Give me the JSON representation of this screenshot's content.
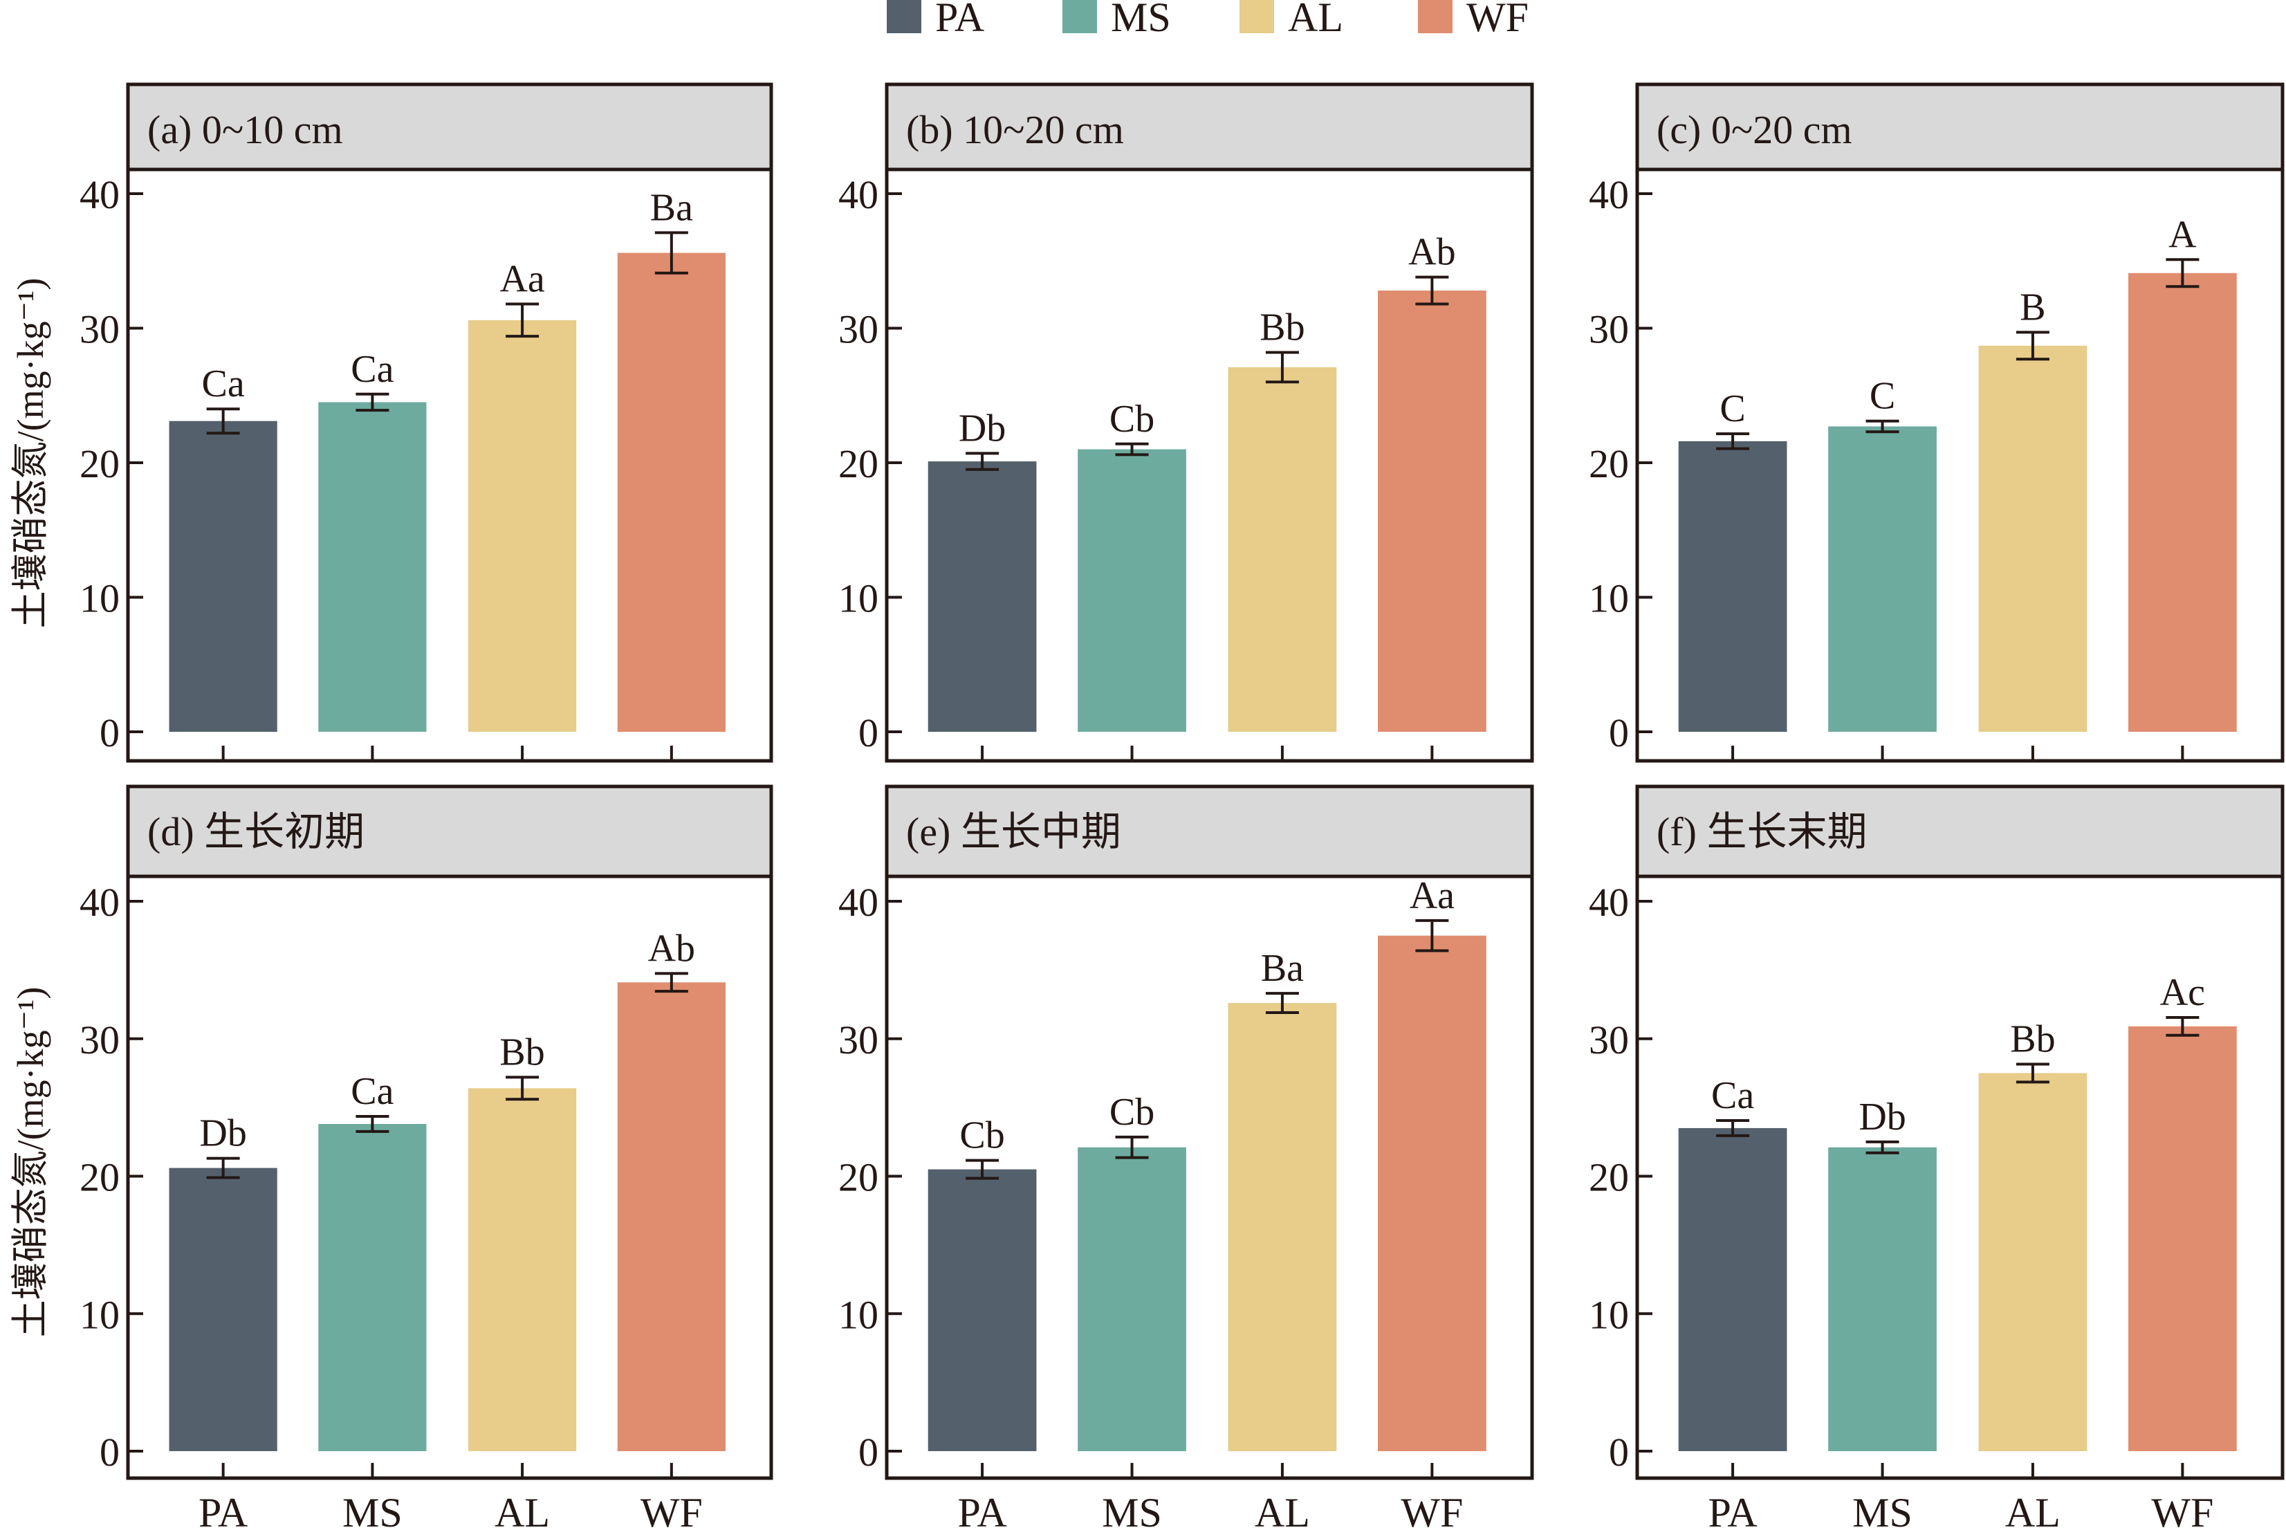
{
  "chart_data": {
    "type": "bar",
    "ylabel": "土壤硝态氮/(mg·kg⁻¹)",
    "categories": [
      "PA",
      "MS",
      "AL",
      "WF"
    ],
    "ylim": [
      0,
      40
    ],
    "yticks": [
      0,
      10,
      20,
      30,
      40
    ],
    "grid": false,
    "legend": {
      "placement": "top-center",
      "entries": [
        {
          "label": "PA",
          "color": "#54616D"
        },
        {
          "label": "MS",
          "color": "#6DAB9F"
        },
        {
          "label": "AL",
          "color": "#E7CC8A"
        },
        {
          "label": "WF",
          "color": "#E08D6F"
        }
      ]
    },
    "panels": [
      {
        "title": "(a) 0~10 cm",
        "values": [
          23.1,
          24.5,
          30.6,
          35.6
        ],
        "errors": [
          0.9,
          0.6,
          1.2,
          1.5
        ],
        "labels": [
          "Ca",
          "Ca",
          "Aa",
          "Ba"
        ]
      },
      {
        "title": "(b) 10~20 cm",
        "values": [
          20.1,
          21.0,
          27.1,
          32.8
        ],
        "errors": [
          0.6,
          0.4,
          1.1,
          1.0
        ],
        "labels": [
          "Db",
          "Cb",
          "Bb",
          "Ab"
        ]
      },
      {
        "title": "(c) 0~20 cm",
        "values": [
          21.6,
          22.7,
          28.7,
          34.1
        ],
        "errors": [
          0.55,
          0.4,
          1.0,
          1.0
        ],
        "labels": [
          "C",
          "C",
          "B",
          "A"
        ]
      },
      {
        "title": "(d) 生长初期",
        "values": [
          20.6,
          23.8,
          26.4,
          34.1
        ],
        "errors": [
          0.7,
          0.55,
          0.8,
          0.65
        ],
        "labels": [
          "Db",
          "Ca",
          "Bb",
          "Ab"
        ]
      },
      {
        "title": "(e) 生长中期",
        "values": [
          20.5,
          22.1,
          32.6,
          37.5
        ],
        "errors": [
          0.65,
          0.75,
          0.7,
          1.1
        ],
        "labels": [
          "Cb",
          "Cb",
          "Ba",
          "Aa"
        ]
      },
      {
        "title": "(f) 生长末期",
        "values": [
          23.5,
          22.1,
          27.5,
          30.9
        ],
        "errors": [
          0.55,
          0.4,
          0.65,
          0.65
        ],
        "labels": [
          "Ca",
          "Db",
          "Bb",
          "Ac"
        ]
      }
    ]
  }
}
